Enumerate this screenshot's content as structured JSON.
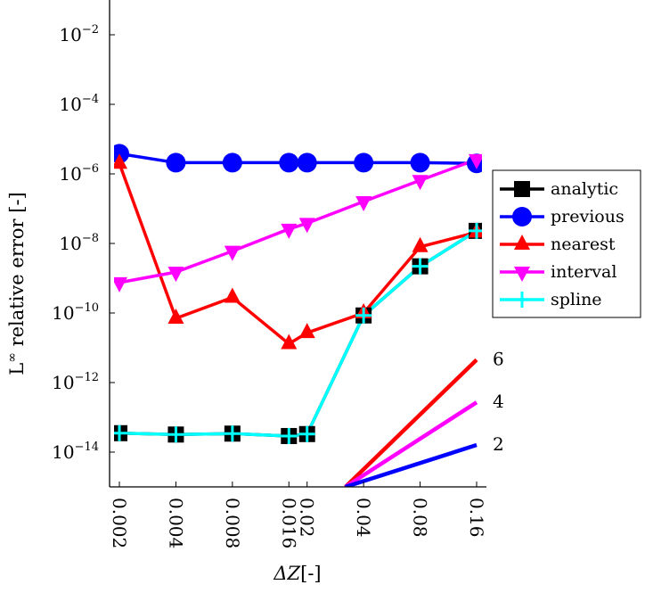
{
  "chart_data": {
    "type": "line",
    "xscale": "log2",
    "yscale": "log",
    "x": [
      0.002,
      0.004,
      0.008,
      0.016,
      0.02,
      0.04,
      0.08,
      0.16
    ],
    "x_tick_labels": [
      "0.002",
      "0.004",
      "0.008",
      "0.016",
      "0.02",
      "0.04",
      "0.08",
      "0.16"
    ],
    "ylim": [
      1e-15,
      0.1
    ],
    "y_ticks": [
      {
        "exp": -14,
        "base": "10",
        "sup": "−14"
      },
      {
        "exp": -12,
        "base": "10",
        "sup": "−12"
      },
      {
        "exp": -10,
        "base": "10",
        "sup": "−10"
      },
      {
        "exp": -8,
        "base": "10",
        "sup": "−8"
      },
      {
        "exp": -6,
        "base": "10",
        "sup": "−6"
      },
      {
        "exp": -4,
        "base": "10",
        "sup": "−4"
      },
      {
        "exp": -2,
        "base": "10",
        "sup": "−2"
      }
    ],
    "xlabel": {
      "main": "ΔZ",
      "unit": "[-]"
    },
    "ylabel": {
      "main": "L",
      "sup": "∞",
      "rest": " relative error [-]"
    },
    "legend_position": "outer-right",
    "series": [
      {
        "name": "analytic",
        "color": "#000000",
        "marker": "square",
        "values": [
          3.5e-14,
          3.2e-14,
          3.4e-14,
          2.9e-14,
          3.3e-14,
          8.5e-11,
          2.2e-09,
          2.3e-08
        ]
      },
      {
        "name": "previous",
        "color": "#0000ff",
        "marker": "circle",
        "values": [
          3.8e-06,
          2.1e-06,
          2.1e-06,
          2.1e-06,
          2.1e-06,
          2.1e-06,
          2.1e-06,
          2e-06
        ]
      },
      {
        "name": "nearest",
        "color": "#ff0000",
        "marker": "triangle-up",
        "values": [
          2e-06,
          7e-11,
          2.8e-10,
          1.3e-11,
          2.7e-11,
          1e-10,
          8e-09,
          2.1e-08
        ]
      },
      {
        "name": "interval",
        "color": "#ff00ff",
        "marker": "triangle-down",
        "values": [
          7.5e-10,
          1.5e-09,
          6e-09,
          2.6e-08,
          3.8e-08,
          1.6e-07,
          6.5e-07,
          2.6e-06
        ]
      },
      {
        "name": "spline",
        "color": "#00ffff",
        "marker": "plus",
        "values": [
          3.5e-14,
          3.2e-14,
          3.4e-14,
          2.9e-14,
          3.3e-14,
          8.5e-11,
          2.2e-09,
          2.3e-08
        ]
      }
    ],
    "slope_lines": [
      {
        "label": "6",
        "color": "#ff0000",
        "x": [
          0.032,
          0.16
        ],
        "y": [
          1e-15,
          4.5e-12
        ]
      },
      {
        "label": "4",
        "color": "#ff00ff",
        "x": [
          0.032,
          0.16
        ],
        "y": [
          1e-15,
          2.7e-13
        ]
      },
      {
        "label": "2",
        "color": "#0000ff",
        "x": [
          0.032,
          0.16
        ],
        "y": [
          1e-15,
          1.6e-14
        ]
      }
    ]
  }
}
